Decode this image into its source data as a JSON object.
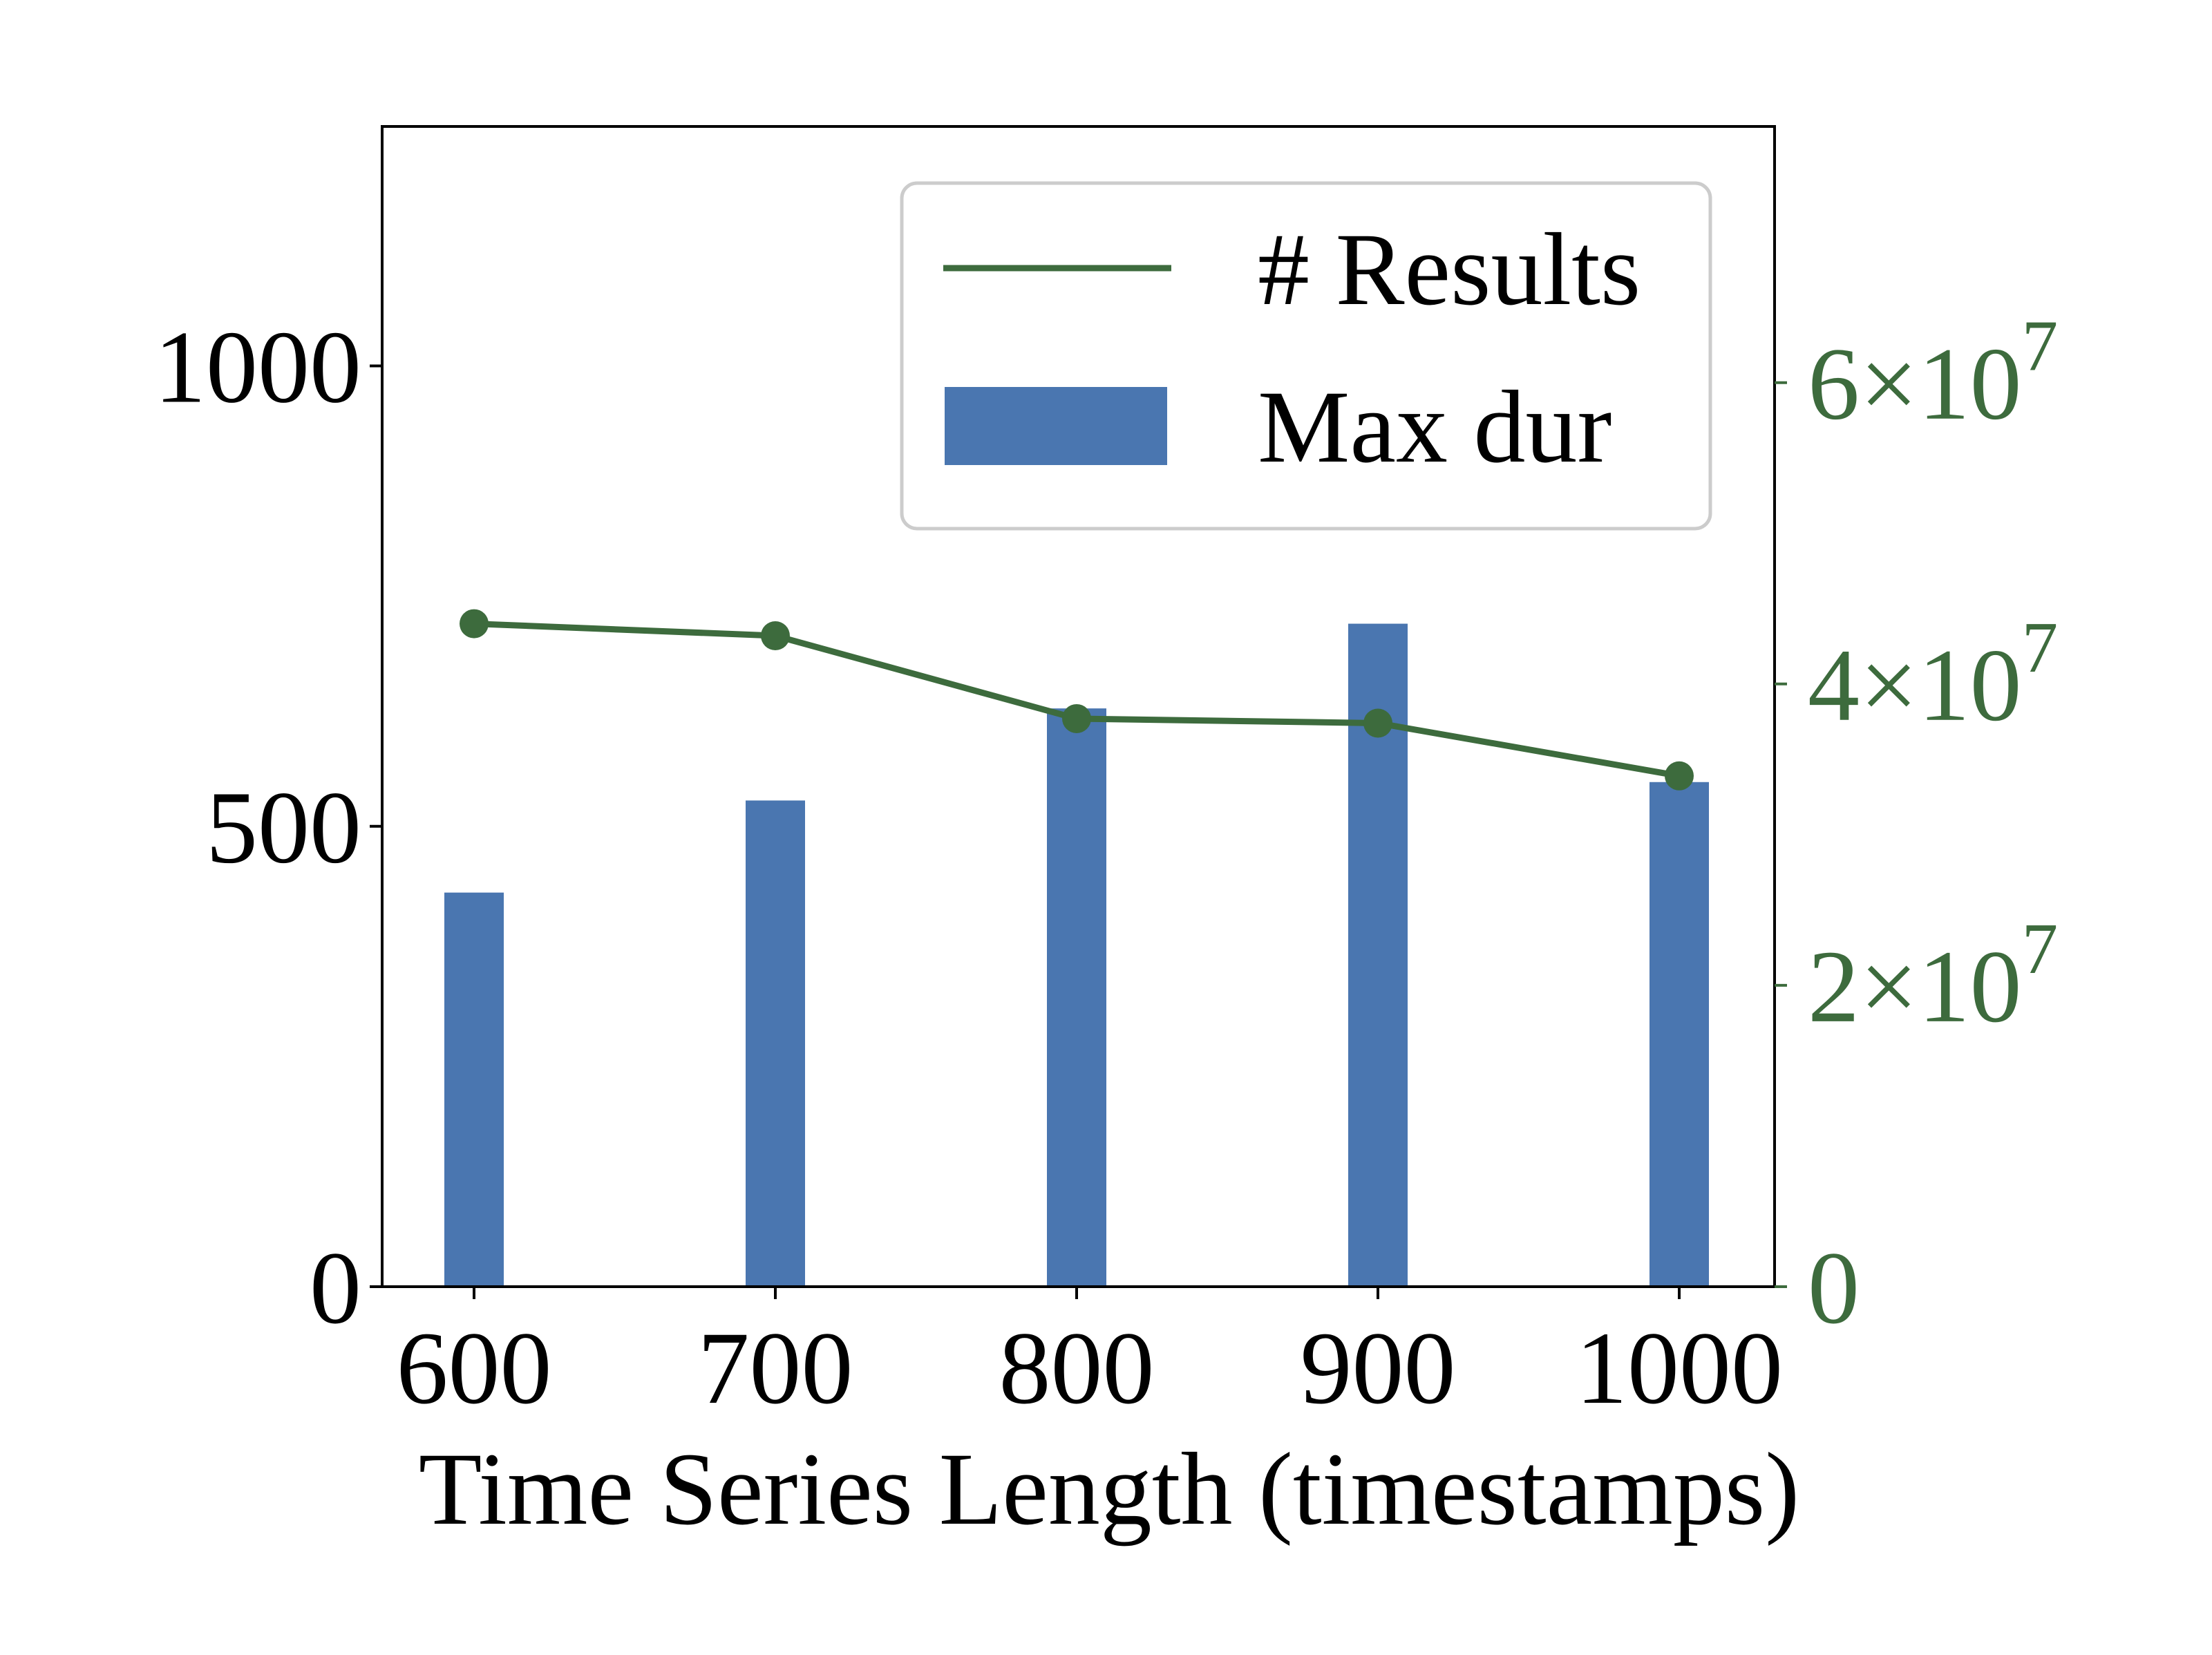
{
  "chart_data": {
    "type": "bar",
    "categories": [
      "600",
      "700",
      "800",
      "900",
      "1000"
    ],
    "x": [
      600,
      700,
      800,
      900,
      1000
    ],
    "xlabel": "Time Series Length (timestamps)",
    "y_ticks": [
      0,
      500,
      1000
    ],
    "ylim": [
      0,
      1260
    ],
    "y2_ticks": [
      0,
      20000000,
      40000000,
      60000000
    ],
    "y2_tick_labels": [
      {
        "mantissa": "0",
        "exponent": ""
      },
      {
        "mantissa": "2",
        "exponent": "7"
      },
      {
        "mantissa": "4",
        "exponent": "7"
      },
      {
        "mantissa": "6",
        "exponent": "7"
      }
    ],
    "y2lim": [
      0,
      77000000
    ],
    "series": [
      {
        "name": "Max dur",
        "type": "bar",
        "axis": "left",
        "color": "#4a76b0",
        "values": [
          428,
          528,
          628,
          720,
          548
        ]
      },
      {
        "name": "# Results",
        "type": "line",
        "axis": "right",
        "color": "#3d6b3d",
        "values": [
          44000000,
          43200000,
          37700000,
          37400000,
          33900000
        ]
      }
    ],
    "legend": {
      "position": "top-right",
      "entries": [
        "# Results",
        "Max dur"
      ]
    },
    "grid": false,
    "colors": {
      "bar": "#4a76b0",
      "line": "#3d6b3d",
      "axis": "#000000",
      "legend_border": "#cccccc"
    }
  }
}
